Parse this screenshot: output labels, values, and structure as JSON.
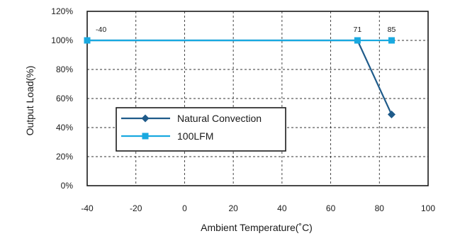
{
  "chart_data": {
    "type": "line",
    "title": "",
    "xlabel": "Ambient Temperature(˚C)",
    "ylabel": "Output Load(%)",
    "xlim": [
      -40,
      100
    ],
    "ylim": [
      0,
      120
    ],
    "x_ticks": [
      -40,
      -20,
      0,
      20,
      40,
      60,
      80,
      100
    ],
    "y_ticks": [
      {
        "value": 0,
        "label": "0%"
      },
      {
        "value": 20,
        "label": "20%"
      },
      {
        "value": 40,
        "label": "40%"
      },
      {
        "value": 60,
        "label": "60%"
      },
      {
        "value": 80,
        "label": "80%"
      },
      {
        "value": 100,
        "label": "100%"
      },
      {
        "value": 120,
        "label": "120%"
      }
    ],
    "grid": true,
    "legend_position": "lower-left",
    "series": [
      {
        "name": "Natural Convection",
        "color": "#1f5b8a",
        "marker": "diamond",
        "points": [
          {
            "x": -40,
            "y": 100
          },
          {
            "x": 71,
            "y": 100
          },
          {
            "x": 85,
            "y": 49
          }
        ]
      },
      {
        "name": "100LFM",
        "color": "#19a9e0",
        "marker": "square",
        "points": [
          {
            "x": -40,
            "y": 100
          },
          {
            "x": 71,
            "y": 100
          },
          {
            "x": 85,
            "y": 100
          }
        ]
      }
    ],
    "annotations": [
      {
        "text": "-40",
        "x": -40,
        "y": 100
      },
      {
        "text": "71",
        "x": 71,
        "y": 100
      },
      {
        "text": "85",
        "x": 85,
        "y": 100
      }
    ]
  }
}
